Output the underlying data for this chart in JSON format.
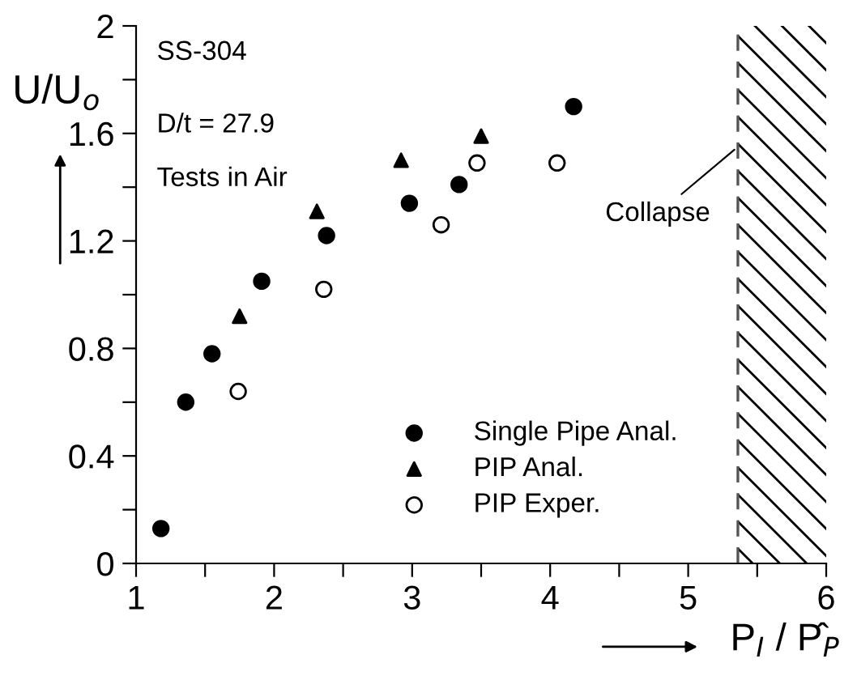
{
  "chart_data": {
    "type": "scatter",
    "xlabel": "P$_{I}$ / P̂$_{P}$",
    "ylabel": "U/U$_{o}$",
    "annotations": [
      "SS-304",
      "D/t = 27.9",
      "Tests in Air"
    ],
    "xlim": [
      1,
      6
    ],
    "ylim": [
      0,
      2
    ],
    "xticks": [
      1,
      {
        "value": 1.5,
        "label": null
      },
      2,
      {
        "value": 2.5,
        "label": null
      },
      3,
      {
        "value": 3.5,
        "label": null
      },
      4,
      {
        "value": 4.5,
        "label": null
      },
      5,
      {
        "value": 5.5,
        "label": null
      },
      6
    ],
    "yticks": [
      0,
      {
        "value": 0.2,
        "label": null
      },
      0.4,
      {
        "value": 0.6,
        "label": null
      },
      0.8,
      {
        "value": 1.0,
        "label": null
      },
      1.2,
      {
        "value": 1.4,
        "label": null
      },
      1.6,
      {
        "value": 1.8,
        "label": null
      },
      2
    ],
    "grid": false,
    "legend": "bottom right",
    "series": [
      {
        "name": "Single Pipe Anal.",
        "color": "#000000",
        "marker": "circle",
        "x": [
          1.18,
          1.36,
          1.55,
          1.91,
          2.38,
          2.98,
          3.34,
          4.17
        ],
        "values": [
          0.13,
          0.6,
          0.78,
          1.05,
          1.22,
          1.34,
          1.41,
          1.7
        ]
      },
      {
        "name": "PIP Anal.",
        "color": "#000000",
        "marker": "triangle",
        "x": [
          1.75,
          2.31,
          2.92,
          3.5
        ],
        "values": [
          0.92,
          1.31,
          1.5,
          1.59
        ]
      },
      {
        "name": "PIP Exper.",
        "color": "#ffffff",
        "marker": "circle",
        "x": [
          1.74,
          2.36,
          3.21,
          3.47,
          4.05
        ],
        "values": [
          0.64,
          1.02,
          1.26,
          1.49,
          1.49
        ]
      }
    ],
    "ref_lines": [
      {
        "axis": "x",
        "value": 5.36,
        "label": "Collapse",
        "line_style": "dashed",
        "color": "#555555"
      }
    ],
    "bands": [
      {
        "axis": "x",
        "from": 5.36,
        "to": 6,
        "color": "#000000"
      }
    ]
  }
}
